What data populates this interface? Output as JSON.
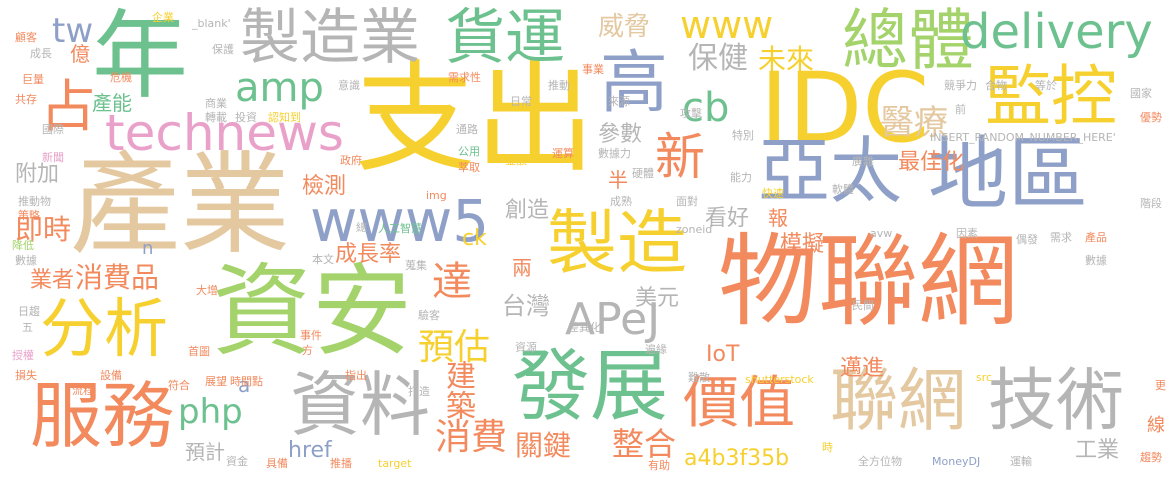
{
  "palette": {
    "tan": "#e4c8a0",
    "yellow": "#f6d02f",
    "orange": "#f28a5e",
    "green": "#6dc18f",
    "blue": "#8fa0c8",
    "gray": "#b5b5b5",
    "pink": "#e9a0c9",
    "lime": "#a3d36a"
  },
  "words": {
    "w1": "物聯網",
    "w2": "產業",
    "w3": "支出",
    "w4": "資安",
    "w5": "IDC",
    "w6": "亞太",
    "w7": "地區",
    "w8": "年",
    "w9": "發展",
    "w10": "製造業",
    "w11": "貨運",
    "w12": "高",
    "w13": "總體",
    "w14": "delivery",
    "w15": "監控",
    "w16": "technews",
    "w17": "www5",
    "w18": "製造",
    "w19": "分析",
    "w20": "服務",
    "w21": "資料",
    "w22": "價值",
    "w23": "聯網",
    "w24": "技術",
    "w25": "APeJ",
    "w26": "占",
    "w27": "amp",
    "w28": "tw",
    "w29": "www",
    "w30": "新",
    "w31": "cb",
    "w32": "醫療",
    "w33": "php",
    "w34": "預估",
    "w35": "建築",
    "w36": "消費",
    "w37": "關鍵",
    "w38": "整合",
    "w39": "達",
    "w40": "消費品",
    "w41": "保健",
    "w42": "未來",
    "w43": "威脅",
    "w44": "台灣",
    "w45": "即時",
    "w46": "成長率",
    "w47": "檢測",
    "w48": "業者",
    "w49": "創造",
    "w50": "最佳化",
    "w51": "模擬",
    "w52": "邁進",
    "w53": "IoT",
    "w54": "a4b3f35b",
    "w55": "工業",
    "w56": "參數",
    "w57": "產能",
    "w58": "億",
    "w59": "附加",
    "w60": "看好",
    "w61": "美元",
    "w62": "href",
    "w63": "預計",
    "w64": "ck",
    "w65": "兩",
    "w66": "半",
    "w67": "報",
    "w68": "線",
    "w69": "a",
    "w70": "n",
    "w71": "INSERT_RANDOM_NUMBER_HERE'",
    "w72": "shutterstock",
    "w73": "MoneyDJ",
    "w74": "zoneid",
    "w75": "avw",
    "w76": "人工智慧",
    "w77": "全方位物",
    "w78": "_blank'",
    "w79": "企業",
    "w80": "保護",
    "w81": "成長",
    "w82": "危機",
    "w83": "巨量",
    "w84": "共存",
    "w85": "國際",
    "w86": "新聞",
    "w87": "推動物",
    "w88": "策略",
    "w89": "降低",
    "w90": "數據",
    "w91": "日趨",
    "w92": "五",
    "w93": "授權",
    "w94": "損失",
    "w95": "顧客",
    "w96": "商業",
    "w97": "轉載",
    "w98": "投資",
    "w99": "認知到",
    "w100": "意識",
    "w101": "需求性",
    "w102": "事業",
    "w103": "推動",
    "w104": "日常",
    "w105": "來源",
    "w106": "特別",
    "w107": "通路",
    "w108": "公用",
    "w109": "萃取",
    "w110": "金額",
    "w111": "運算",
    "w112": "數據力",
    "w113": "硬體",
    "w114": "能力",
    "w115": "快速",
    "w116": "軟體",
    "w117": "廣雜",
    "w118": "面對",
    "w119": "成熟",
    "w120": "img",
    "w121": "因素",
    "w122": "偶發",
    "w123": "需求",
    "w124": "產品",
    "w125": "民間",
    "w126": "遍緣",
    "w127": "差異化",
    "w128": "難散",
    "w129": "競爭力",
    "w130": "合物",
    "w131": "等於",
    "w132": "國家",
    "w133": "優勢",
    "w134": "階段",
    "w135": "前",
    "w136": "更",
    "w137": "運輸",
    "w138": "趨勢",
    "w139": "資金",
    "w140": "具備",
    "w141": "推播",
    "w142": "target",
    "w143": "有助",
    "w144": "時",
    "w145": "符合",
    "w146": "展望",
    "w147": "時間點",
    "w148": "設備",
    "w149": "流程",
    "w150": "指出",
    "w151": "打造",
    "w152": "首圖",
    "w153": "事件",
    "w154": "方",
    "w155": "資源",
    "w156": "大增",
    "w157": "蒐集",
    "w158": "驗客",
    "w159": "本文",
    "w160": "總",
    "w161": "攻擊",
    "w162": "src",
    "w163": "政府",
    "w164": "數據",
    "w165": "要"
  }
}
